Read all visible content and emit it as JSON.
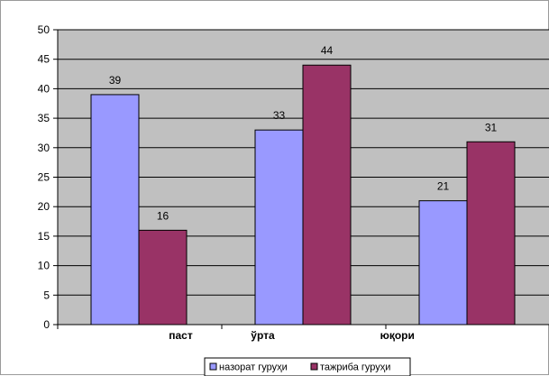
{
  "chart_data": {
    "type": "bar",
    "categories": [
      "паст",
      "ўрта",
      "юқори"
    ],
    "series": [
      {
        "name": "назорат гуруҳи",
        "values": [
          39,
          33,
          21
        ],
        "color": "#9999ff"
      },
      {
        "name": "тажриба гуруҳи",
        "values": [
          16,
          44,
          31
        ],
        "color": "#993366"
      }
    ],
    "ylim": [
      0,
      50
    ],
    "yticks": [
      0,
      5,
      10,
      15,
      20,
      25,
      30,
      35,
      40,
      45,
      50
    ],
    "grid": true,
    "plot_background": "#c0c0c0",
    "legend_position": "bottom",
    "title": "",
    "xlabel": "",
    "ylabel": ""
  }
}
